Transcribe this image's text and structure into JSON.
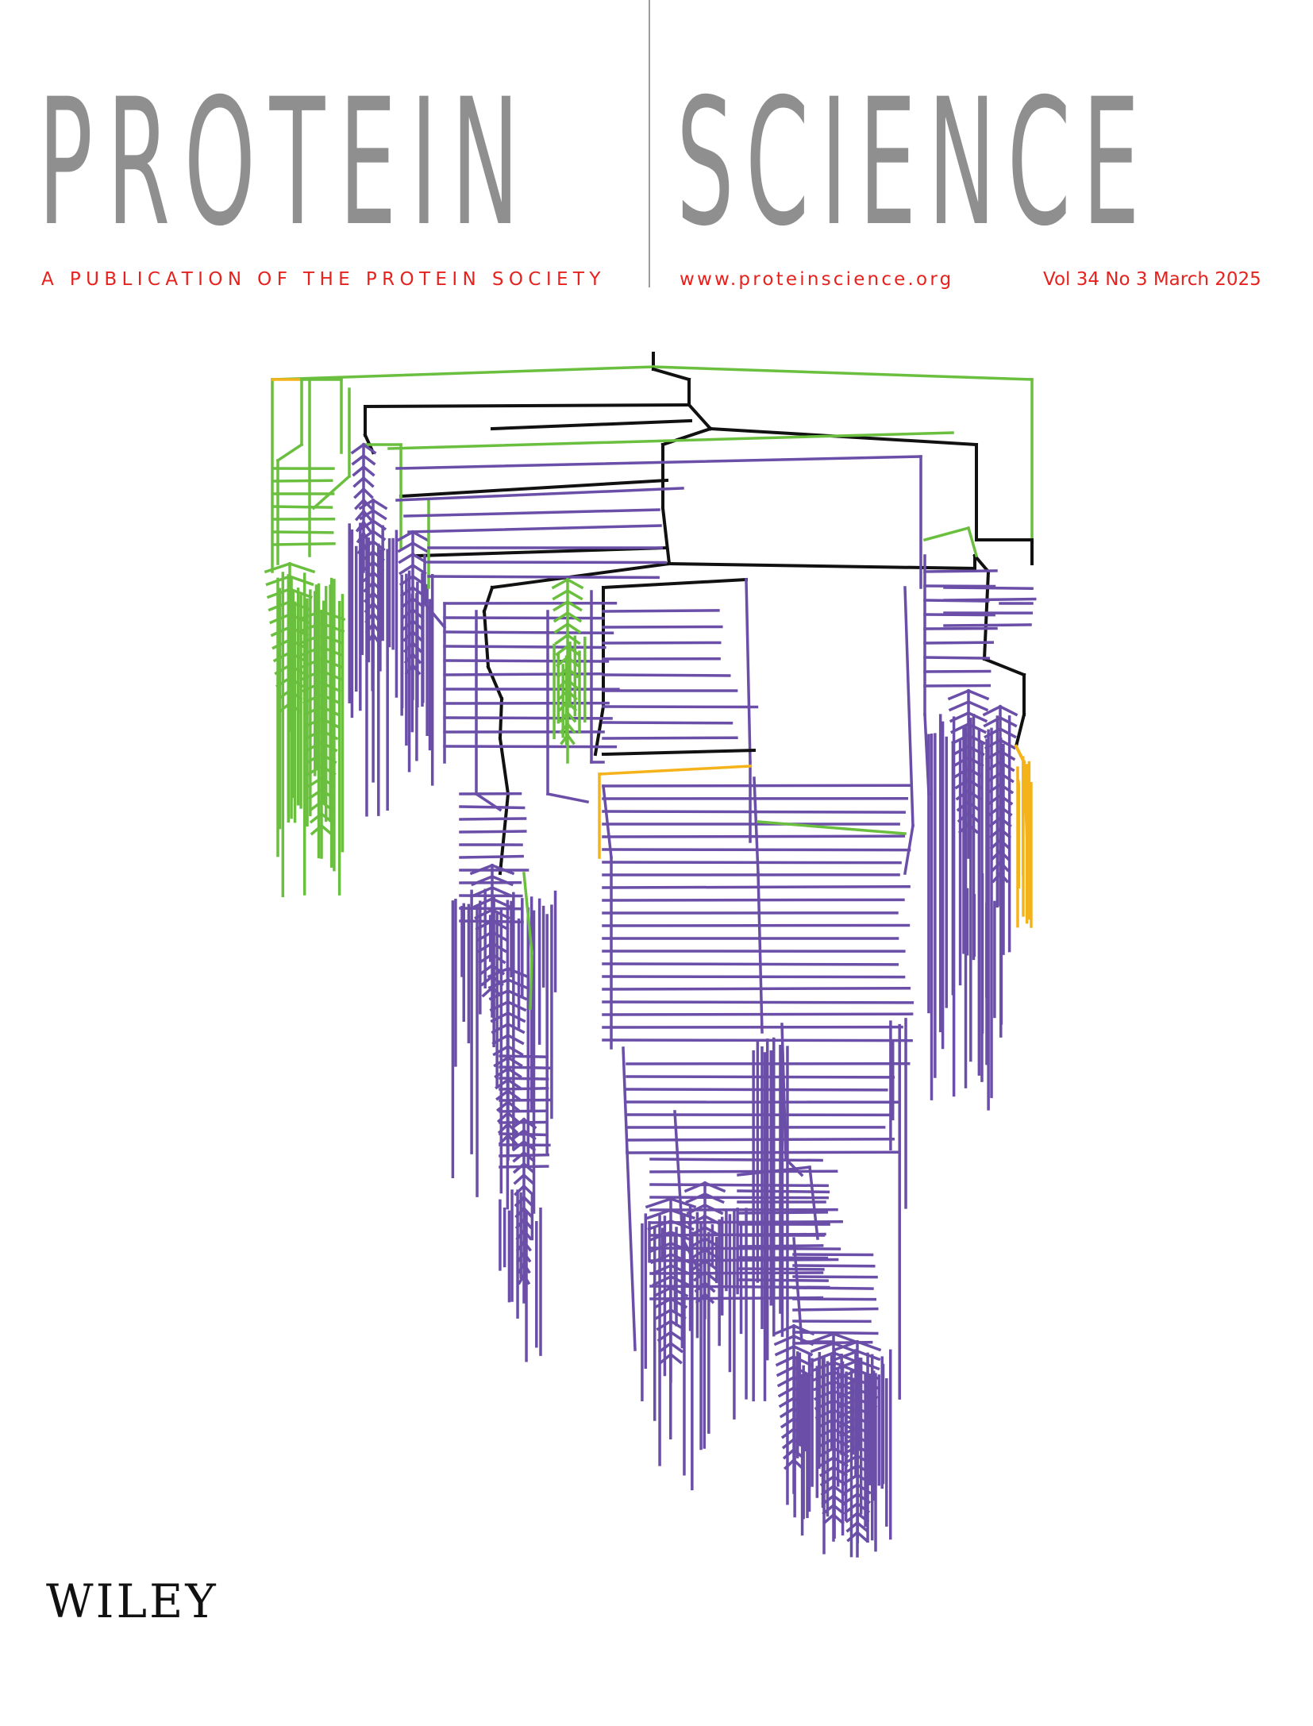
{
  "journal": {
    "title_left": "PROTEIN",
    "title_right": "SCIENCE",
    "publication_line": "A PUBLICATION OF THE PROTEIN SOCIETY",
    "website": "www.proteinscience.org",
    "issue": "Vol 34 No 3 March 2025",
    "publisher": "WILEY"
  },
  "colors": {
    "title_gray": "#8f8f8f",
    "accent_red": "#e5221e",
    "tree_purple": "#6a4ea8",
    "tree_green": "#6abf3f",
    "tree_black": "#111111",
    "tree_orange": "#f5b31b"
  },
  "illustration": {
    "type": "phylogenetic-tree-icon",
    "branch_colors": [
      "purple",
      "green",
      "black",
      "orange"
    ]
  }
}
